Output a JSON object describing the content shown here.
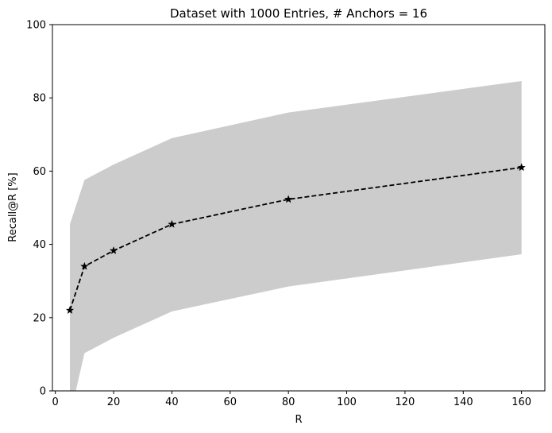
{
  "chart_data": {
    "type": "line",
    "title": "Dataset with 1000 Entries, # Anchors = 16",
    "xlabel": "R",
    "ylabel": "Recall@R [%]",
    "xlim": [
      -1,
      168
    ],
    "ylim": [
      0,
      100
    ],
    "x_ticks": [
      0,
      20,
      40,
      60,
      80,
      100,
      120,
      140,
      160
    ],
    "y_ticks": [
      0,
      20,
      40,
      60,
      80,
      100
    ],
    "grid": false,
    "series": [
      {
        "x": [
          5,
          10,
          20,
          40,
          80,
          160
        ],
        "values": [
          22,
          34,
          38.3,
          45.5,
          52.3,
          61
        ],
        "color": "#000000",
        "line_style": "dashed",
        "marker": "star"
      }
    ],
    "band": {
      "x": [
        5,
        10,
        20,
        40,
        80,
        160
      ],
      "upper": [
        45.5,
        57.6,
        61.8,
        69,
        76,
        84.6
      ],
      "lower": [
        -7,
        10.3,
        14.5,
        21.7,
        28.5,
        37.3
      ],
      "color": "#cccccc"
    }
  }
}
